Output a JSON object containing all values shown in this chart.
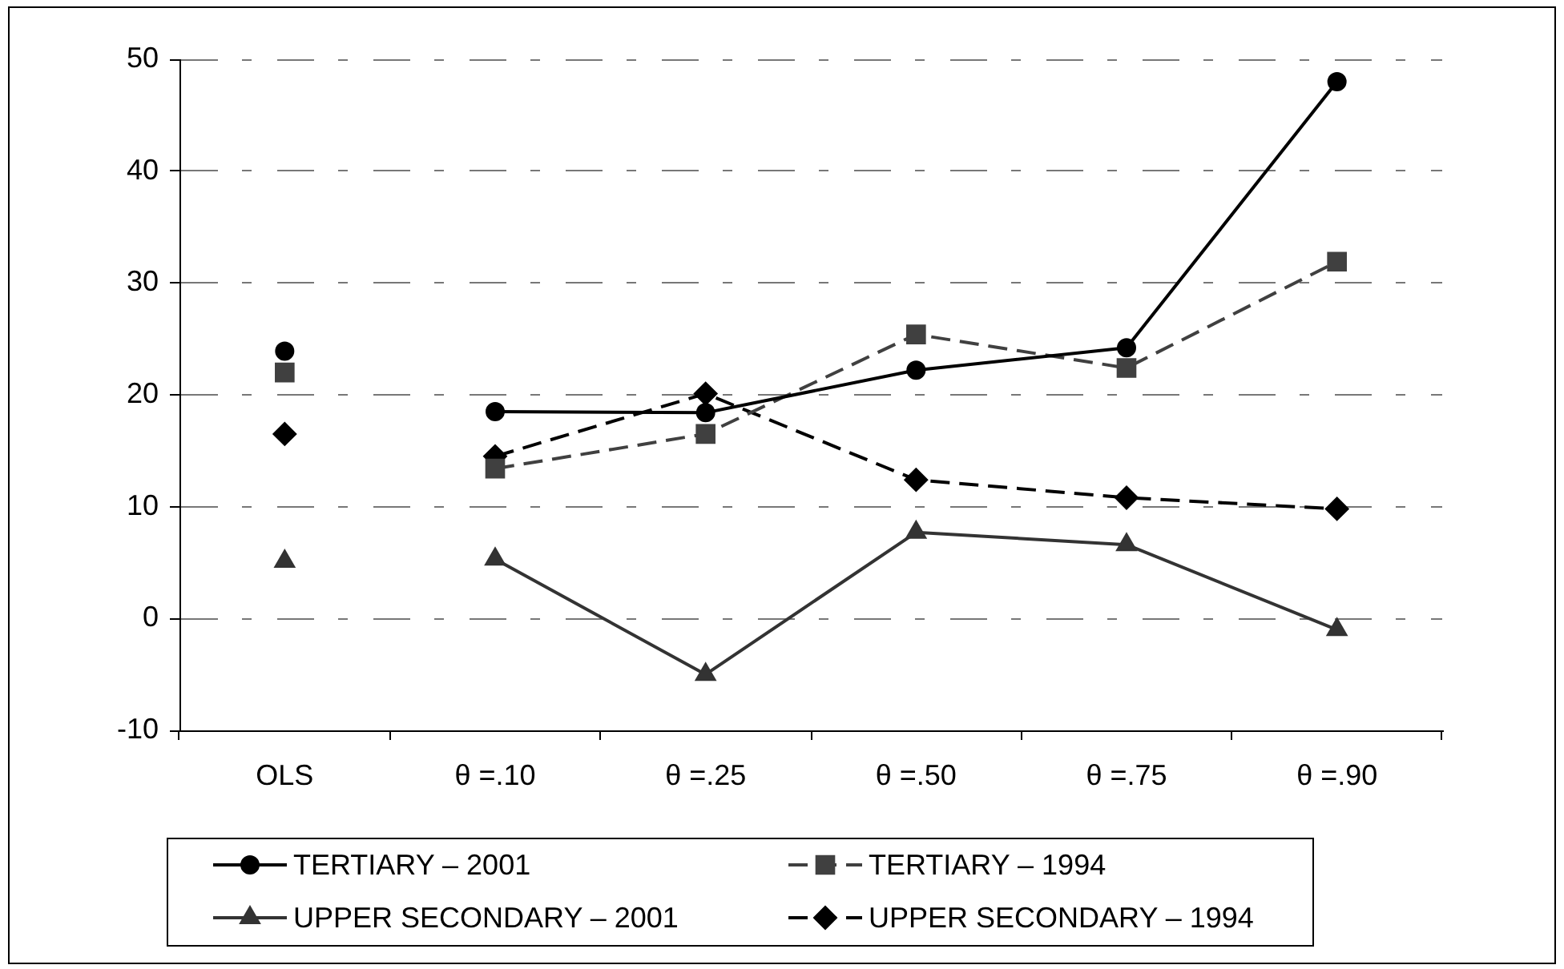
{
  "chart_data": {
    "type": "line",
    "categories": [
      "OLS",
      "θ =.10",
      "θ =.25",
      "θ =.50",
      "θ =.75",
      "θ =.90"
    ],
    "series": [
      {
        "name": "TERTIARY – 2001",
        "color": "#000000",
        "marker": "circle",
        "line_style": "solid",
        "values": [
          null,
          18.5,
          18.4,
          22.2,
          24.2,
          48.0
        ]
      },
      {
        "name": "TERTIARY – 1994",
        "color": "#404040",
        "marker": "square",
        "line_style": "dashed",
        "values": [
          null,
          13.4,
          16.5,
          25.4,
          22.4,
          31.9
        ]
      },
      {
        "name": "UPPER SECONDARY – 2001",
        "color": "#333333",
        "marker": "triangle",
        "line_style": "solid",
        "values": [
          null,
          5.3,
          -5.0,
          7.7,
          6.6,
          -1.0
        ]
      },
      {
        "name": "UPPER SECONDARY – 1994",
        "color": "#000000",
        "marker": "diamond",
        "line_style": "dashed",
        "values": [
          null,
          14.5,
          20.1,
          12.4,
          10.8,
          9.8
        ]
      },
      {
        "type": "scatter",
        "color": "#000000",
        "marker": "circle",
        "x": [
          "OLS"
        ],
        "values": [
          23.9
        ]
      },
      {
        "type": "scatter",
        "color": "#404040",
        "marker": "square",
        "x": [
          "OLS"
        ],
        "values": [
          22.0
        ]
      },
      {
        "type": "scatter",
        "color": "#333333",
        "marker": "triangle",
        "x": [
          "OLS"
        ],
        "values": [
          5.1
        ]
      },
      {
        "type": "scatter",
        "color": "#000000",
        "marker": "diamond",
        "x": [
          "OLS"
        ],
        "values": [
          16.5
        ]
      }
    ],
    "ylim": [
      -10,
      50
    ],
    "yticks": [
      -10,
      0,
      10,
      20,
      30,
      40,
      50
    ],
    "grid": "y",
    "legend": "bottom"
  }
}
